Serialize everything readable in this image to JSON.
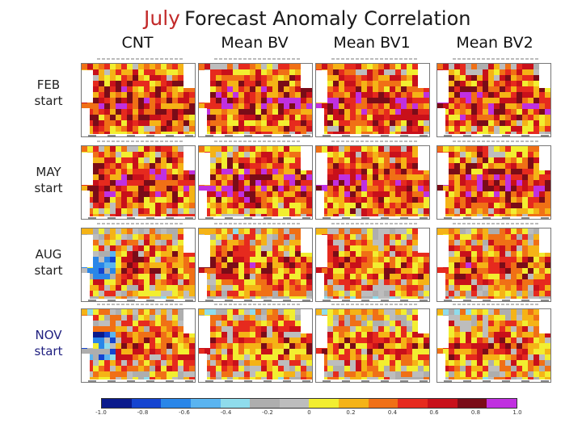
{
  "title": {
    "month": "July",
    "rest": "Forecast Anomaly Correlation"
  },
  "columns": [
    "CNT",
    "Mean BV",
    "Mean BV1",
    "Mean BV2"
  ],
  "rows": [
    {
      "line1": "FEB",
      "line2": "start"
    },
    {
      "line1": "MAY",
      "line2": "start"
    },
    {
      "line1": "AUG",
      "line2": "start"
    },
    {
      "line1": "NOV",
      "line2": "start"
    }
  ],
  "colorbar": {
    "colors": [
      "#0a1a8c",
      "#1444d0",
      "#2a86e8",
      "#5ab4f0",
      "#8fdcec",
      "#aeaeae",
      "#bdbdbd",
      "#f2ee30",
      "#f5b316",
      "#f07016",
      "#e62a1e",
      "#c8101a",
      "#7a0c18",
      "#c030e0"
    ],
    "ticks": [
      "-1.0",
      "-0.8",
      "-0.6",
      "-0.4",
      "-0.2",
      "0",
      "0.2",
      "0.4",
      "0.6",
      "0.8",
      "1.0"
    ]
  }
}
